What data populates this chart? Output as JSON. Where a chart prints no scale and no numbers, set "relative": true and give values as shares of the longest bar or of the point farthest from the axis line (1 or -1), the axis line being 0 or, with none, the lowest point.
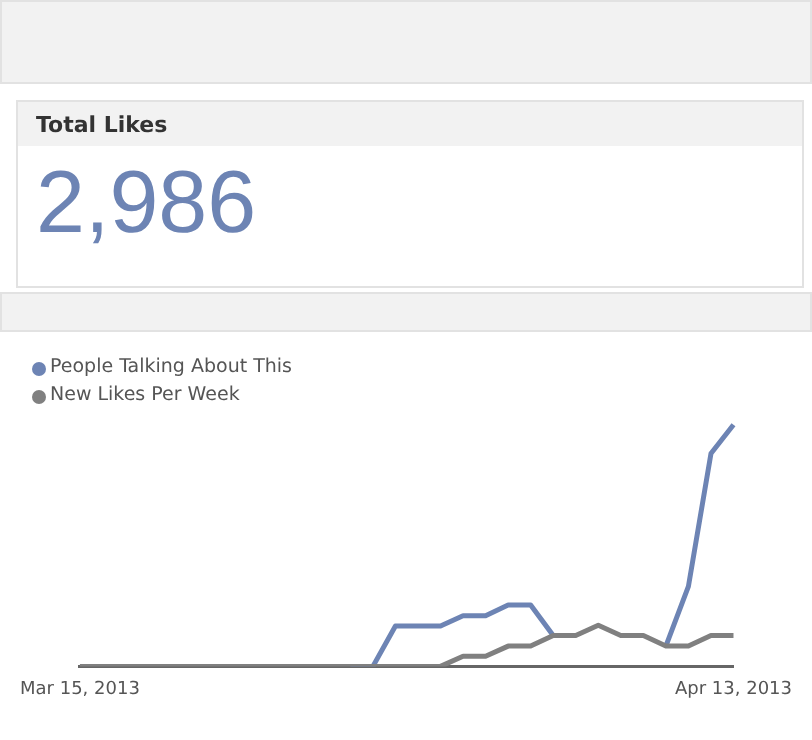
{
  "chart_data": [
    {
      "type": "other",
      "title": "Total Likes",
      "annotations": [
        "2,986"
      ]
    },
    {
      "type": "line",
      "relative": true,
      "legend": "top left",
      "marker": "none",
      "line_style": "solid",
      "categories": [
        "Mar 15, 2013",
        null,
        null,
        null,
        null,
        null,
        null,
        null,
        null,
        null,
        null,
        null,
        null,
        null,
        null,
        null,
        null,
        null,
        null,
        null,
        null,
        null,
        null,
        null,
        null,
        null,
        null,
        null,
        null,
        "Apr 13, 2013"
      ],
      "series": [
        {
          "name": "People Talking About This",
          "color": "#6d84b4",
          "values": [
            null,
            null,
            null,
            null,
            null,
            null,
            null,
            null,
            null,
            null,
            null,
            null,
            0,
            0,
            0.167,
            0.167,
            0.167,
            0.21,
            0.21,
            0.254,
            0.254,
            0.128,
            null,
            null,
            null,
            null,
            0.084,
            0.331,
            0.881,
            1
          ]
        },
        {
          "name": "New Likes Per Week",
          "color": "#808080",
          "values": [
            0,
            0,
            0,
            0,
            0,
            0,
            0,
            0,
            0,
            0,
            0,
            0,
            0,
            0,
            0,
            0,
            0,
            0.042,
            0.042,
            0.084,
            0.084,
            0.128,
            0.128,
            0.17,
            0.128,
            0.128,
            0.084,
            0.084,
            0.128,
            0.128
          ]
        }
      ]
    }
  ]
}
